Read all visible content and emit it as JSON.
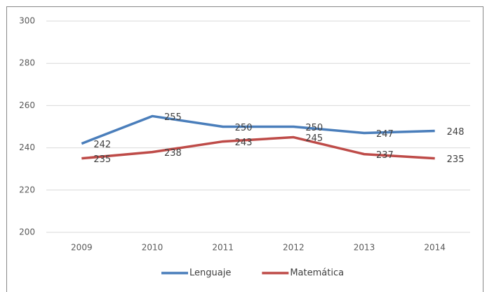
{
  "chart_data": {
    "type": "line",
    "categories": [
      "2009",
      "2010",
      "2011",
      "2012",
      "2013",
      "2014"
    ],
    "series": [
      {
        "name": "Lenguaje",
        "color": "#4a7ebb",
        "values": [
          242,
          255,
          250,
          250,
          247,
          248
        ]
      },
      {
        "name": "Matemática",
        "color": "#be4b48",
        "values": [
          235,
          238,
          243,
          245,
          237,
          235
        ]
      }
    ],
    "ylim": [
      200,
      300
    ],
    "yticks": [
      200,
      220,
      240,
      260,
      280,
      300
    ],
    "grid": true,
    "legend": "bottom"
  }
}
